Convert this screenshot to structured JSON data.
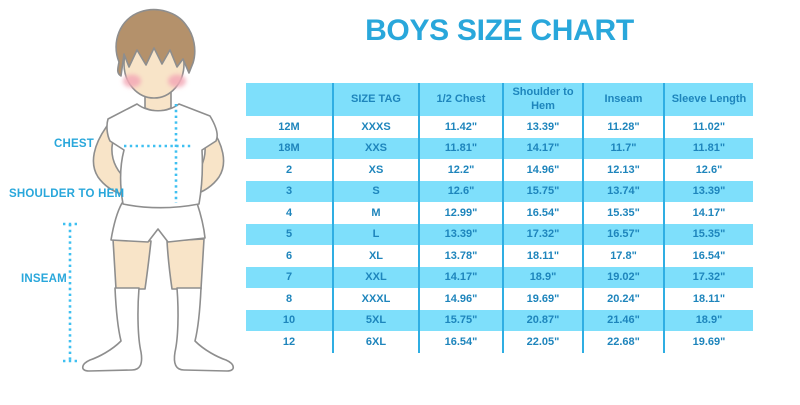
{
  "chart_data": {
    "type": "table",
    "title": "BOYS SIZE CHART",
    "columns": [
      "",
      "SIZE TAG",
      "1/2 Chest",
      "Shoulder to Hem",
      "Inseam",
      "Sleeve Length"
    ],
    "rows": [
      [
        "12M",
        "XXXS",
        "11.42\"",
        "13.39\"",
        "11.28\"",
        "11.02\""
      ],
      [
        "18M",
        "XXS",
        "11.81\"",
        "14.17\"",
        "11.7\"",
        "11.81\""
      ],
      [
        "2",
        "XS",
        "12.2\"",
        "14.96\"",
        "12.13\"",
        "12.6\""
      ],
      [
        "3",
        "S",
        "12.6\"",
        "15.75\"",
        "13.74\"",
        "13.39\""
      ],
      [
        "4",
        "M",
        "12.99\"",
        "16.54\"",
        "15.35\"",
        "14.17\""
      ],
      [
        "5",
        "L",
        "13.39\"",
        "17.32\"",
        "16.57\"",
        "15.35\""
      ],
      [
        "6",
        "XL",
        "13.78\"",
        "18.11\"",
        "17.8\"",
        "16.54\""
      ],
      [
        "7",
        "XXL",
        "14.17\"",
        "18.9\"",
        "19.02\"",
        "17.32\""
      ],
      [
        "8",
        "XXXL",
        "14.96\"",
        "19.69\"",
        "20.24\"",
        "18.11\""
      ],
      [
        "10",
        "5XL",
        "15.75\"",
        "20.87\"",
        "21.46\"",
        "18.9\""
      ],
      [
        "12",
        "6XL",
        "16.54\"",
        "22.05\"",
        "22.68\"",
        "19.69\""
      ]
    ]
  },
  "figure_labels": {
    "chest": "CHEST",
    "shoulder_to_hem": "SHOULDER TO HEM",
    "inseam": "INSEAM"
  },
  "colors": {
    "title_blue": "#29A7DB",
    "stripe_light_blue": "#7EDFFB",
    "divider_blue": "#2FAEE3",
    "cell_text_blue": "#1E85BC",
    "dotted_measure_blue": "#3FC0F1"
  }
}
